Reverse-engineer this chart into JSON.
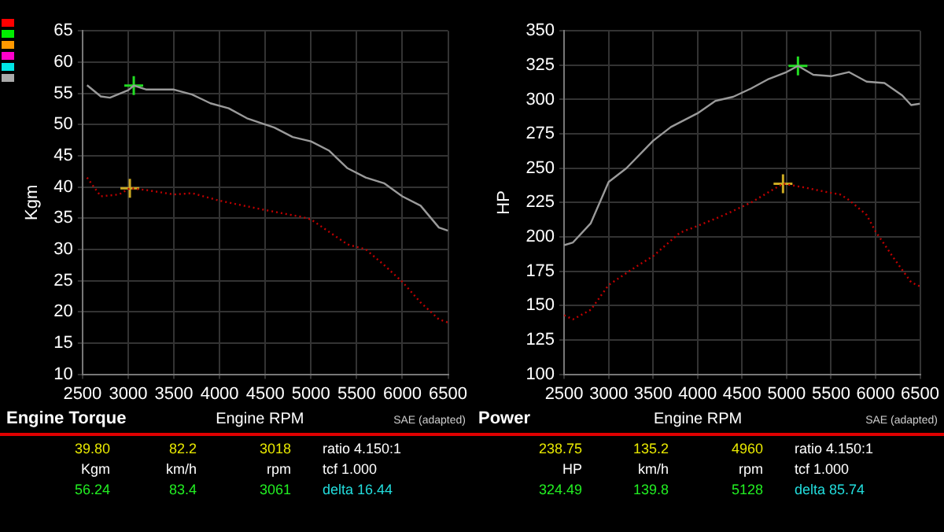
{
  "chart_data": [
    {
      "type": "line",
      "title": "Engine Torque",
      "xlabel": "Engine RPM",
      "ylabel": "Kgm",
      "xlim": [
        2500,
        6500
      ],
      "xticks": [
        2500,
        3000,
        3500,
        4000,
        4500,
        5000,
        5500,
        6000,
        6500
      ],
      "ylim": [
        10,
        65
      ],
      "yticks": [
        10,
        15,
        20,
        25,
        30,
        35,
        40,
        45,
        50,
        55,
        60,
        65
      ],
      "grid": true,
      "legend": false,
      "series": [
        {
          "color": "#9a9a9a",
          "line_style": "solid",
          "marker": "none",
          "x": [
            2550,
            2700,
            2800,
            3000,
            3061,
            3200,
            3500,
            3700,
            3900,
            4100,
            4300,
            4600,
            4800,
            5000,
            5200,
            5400,
            5600,
            5800,
            6000,
            6200,
            6400,
            6500
          ],
          "values": [
            56.3,
            54.5,
            54.3,
            55.5,
            56.24,
            55.6,
            55.6,
            54.8,
            53.4,
            52.6,
            51.0,
            49.5,
            48.0,
            47.3,
            45.8,
            43.0,
            41.5,
            40.6,
            38.5,
            37.0,
            33.5,
            33.0
          ]
        },
        {
          "color": "#c00000",
          "line_style": "dotted",
          "marker": "none",
          "x": [
            2550,
            2700,
            2900,
            3018,
            3200,
            3500,
            3700,
            4000,
            4500,
            4900,
            5000,
            5200,
            5400,
            5600,
            5800,
            6000,
            6200,
            6400,
            6500
          ],
          "values": [
            41.5,
            38.5,
            38.8,
            39.8,
            39.5,
            38.8,
            39.0,
            37.8,
            36.3,
            35.2,
            34.8,
            32.8,
            30.8,
            30.0,
            27.5,
            24.8,
            21.5,
            18.8,
            18.3
          ]
        },
        {
          "type": "scatter",
          "color": "#22dd22",
          "marker": "cross",
          "x": [
            3061
          ],
          "values": [
            56.24
          ]
        },
        {
          "type": "scatter",
          "color": "#ccaa22",
          "marker": "cross",
          "x": [
            3018
          ],
          "values": [
            39.8
          ]
        }
      ],
      "annotations": [
        "SAE (adapted)",
        "39.80",
        "82.2",
        "3018",
        "ratio 4.150:1",
        "Kgm",
        "km/h",
        "rpm",
        "tcf 1.000",
        "56.24",
        "83.4",
        "3061",
        "delta 16.44"
      ]
    },
    {
      "type": "line",
      "title": "Power",
      "xlabel": "Engine RPM",
      "ylabel": "HP",
      "xlim": [
        2500,
        6500
      ],
      "xticks": [
        2500,
        3000,
        3500,
        4000,
        4500,
        5000,
        5500,
        6000,
        6500
      ],
      "ylim": [
        100,
        350
      ],
      "yticks": [
        100,
        125,
        150,
        175,
        200,
        225,
        250,
        275,
        300,
        325,
        350
      ],
      "grid": true,
      "legend": false,
      "series": [
        {
          "color": "#9a9a9a",
          "line_style": "solid",
          "marker": "none",
          "x": [
            2500,
            2600,
            2800,
            3000,
            3200,
            3500,
            3700,
            4000,
            4200,
            4400,
            4600,
            4800,
            5000,
            5128,
            5300,
            5500,
            5700,
            5900,
            6100,
            6300,
            6400,
            6500
          ],
          "values": [
            194,
            196,
            210,
            240,
            250,
            270,
            280,
            290,
            299,
            302,
            308,
            315,
            320,
            324.49,
            318,
            317,
            320,
            313,
            312,
            303,
            296,
            297
          ]
        },
        {
          "color": "#c00000",
          "line_style": "dotted",
          "marker": "none",
          "x": [
            2500,
            2600,
            2800,
            3000,
            3300,
            3500,
            3800,
            4000,
            4300,
            4600,
            4960,
            5200,
            5500,
            5600,
            5700,
            5900,
            6000,
            6200,
            6400,
            6500
          ],
          "values": [
            143,
            140,
            147,
            165,
            178,
            186,
            203,
            208,
            216,
            225,
            238.75,
            236,
            232,
            231,
            227,
            216,
            204,
            185,
            167,
            164
          ]
        },
        {
          "type": "scatter",
          "color": "#22dd22",
          "marker": "cross",
          "x": [
            5128
          ],
          "values": [
            324.49
          ]
        },
        {
          "type": "scatter",
          "color": "#ccaa22",
          "marker": "cross",
          "x": [
            4960
          ],
          "values": [
            238.75
          ]
        }
      ],
      "annotations": [
        "SAE (adapted)",
        "238.75",
        "135.2",
        "4960",
        "ratio 4.150:1",
        "HP",
        "km/h",
        "rpm",
        "tcf 1.000",
        "324.49",
        "139.8",
        "5128",
        "delta 85.74"
      ]
    }
  ]
}
